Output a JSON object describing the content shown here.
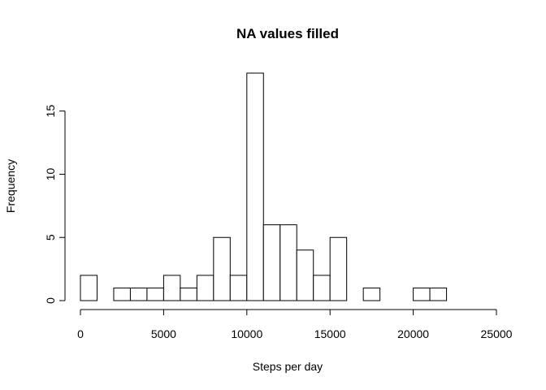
{
  "chart_data": {
    "type": "bar",
    "title": "NA values filled",
    "xlabel": "Steps per day",
    "ylabel": "Frequency",
    "xlim": [
      0,
      25000
    ],
    "ylim": [
      0,
      18
    ],
    "x_ticks": [
      0,
      5000,
      10000,
      15000,
      20000,
      25000
    ],
    "y_ticks": [
      0,
      5,
      10,
      15
    ],
    "bins": [
      {
        "start": 0,
        "end": 1000,
        "count": 2
      },
      {
        "start": 1000,
        "end": 2000,
        "count": 0
      },
      {
        "start": 2000,
        "end": 3000,
        "count": 1
      },
      {
        "start": 3000,
        "end": 4000,
        "count": 1
      },
      {
        "start": 4000,
        "end": 5000,
        "count": 1
      },
      {
        "start": 5000,
        "end": 6000,
        "count": 2
      },
      {
        "start": 6000,
        "end": 7000,
        "count": 1
      },
      {
        "start": 7000,
        "end": 8000,
        "count": 2
      },
      {
        "start": 8000,
        "end": 9000,
        "count": 5
      },
      {
        "start": 9000,
        "end": 10000,
        "count": 2
      },
      {
        "start": 10000,
        "end": 11000,
        "count": 18
      },
      {
        "start": 11000,
        "end": 12000,
        "count": 6
      },
      {
        "start": 12000,
        "end": 13000,
        "count": 6
      },
      {
        "start": 13000,
        "end": 14000,
        "count": 4
      },
      {
        "start": 14000,
        "end": 15000,
        "count": 2
      },
      {
        "start": 15000,
        "end": 16000,
        "count": 5
      },
      {
        "start": 16000,
        "end": 17000,
        "count": 0
      },
      {
        "start": 17000,
        "end": 18000,
        "count": 1
      },
      {
        "start": 18000,
        "end": 19000,
        "count": 0
      },
      {
        "start": 19000,
        "end": 20000,
        "count": 0
      },
      {
        "start": 20000,
        "end": 21000,
        "count": 1
      },
      {
        "start": 21000,
        "end": 22000,
        "count": 1
      }
    ],
    "bar_fill": "#ffffff",
    "bar_stroke": "#000000",
    "grid": false
  }
}
